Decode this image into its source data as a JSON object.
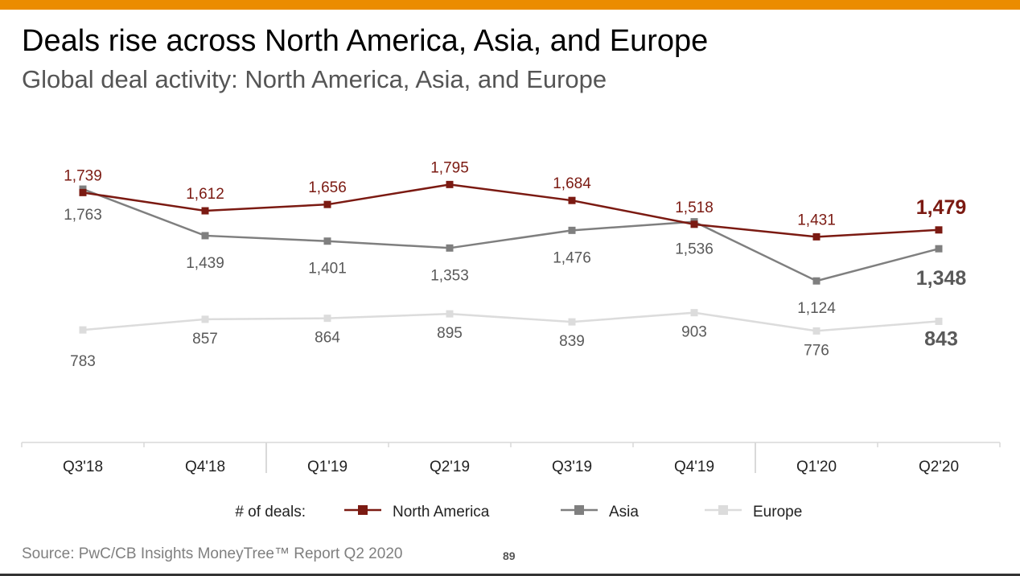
{
  "header": {
    "title": "Deals rise across North America, Asia, and Europe",
    "subtitle": "Global deal activity: North America, Asia, and Europe"
  },
  "footer": {
    "source": "Source: PwC/CB Insights MoneyTree™ Report Q2 2020",
    "page_number": "89"
  },
  "colors": {
    "accent_bar": "#EB8C00"
  },
  "chart_data": {
    "type": "line",
    "categories": [
      "Q3'18",
      "Q4'18",
      "Q1'19",
      "Q2'19",
      "Q3'19",
      "Q4'19",
      "Q1'20",
      "Q2'20"
    ],
    "legend_title": "# of deals:",
    "legend_position": "bottom",
    "ylim": [
      0,
      2200
    ],
    "grid": false,
    "series": [
      {
        "name": "North America",
        "color": "#7B1A12",
        "values": [
          1739,
          1612,
          1656,
          1795,
          1684,
          1518,
          1431,
          1479
        ],
        "labels": [
          "1,739",
          "1,612",
          "1,656",
          "1,795",
          "1,684",
          "1,518",
          "1,431",
          "1,479"
        ]
      },
      {
        "name": "Asia",
        "color": "#7F7F7F",
        "values": [
          1763,
          1439,
          1401,
          1353,
          1476,
          1536,
          1124,
          1348
        ],
        "labels": [
          "1,763",
          "1,439",
          "1,401",
          "1,353",
          "1,476",
          "1,536",
          "1,124",
          "1,348"
        ]
      },
      {
        "name": "Europe",
        "color": "#DCDCDC",
        "values": [
          783,
          857,
          864,
          895,
          839,
          903,
          776,
          843
        ],
        "labels": [
          "783",
          "857",
          "864",
          "895",
          "839",
          "903",
          "776",
          "843"
        ]
      }
    ]
  }
}
